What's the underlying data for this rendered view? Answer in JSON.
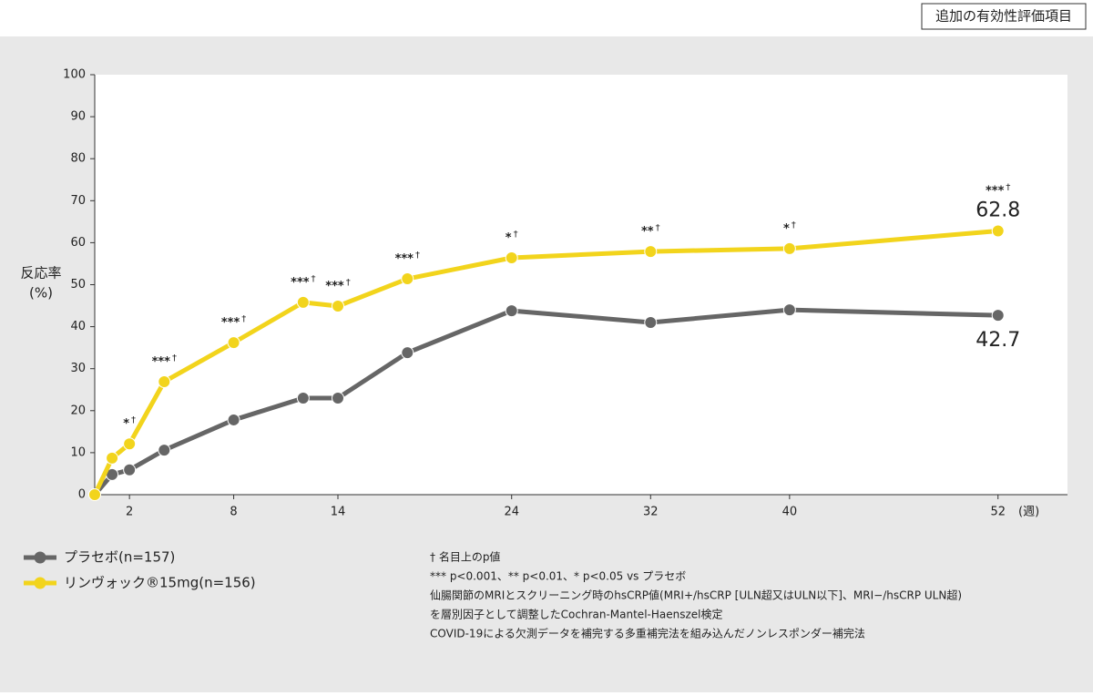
{
  "header": {
    "badge": "追加の有効性評価項目"
  },
  "chart_data": {
    "type": "line",
    "x": [
      0,
      1,
      2,
      4,
      8,
      12,
      14,
      18,
      24,
      32,
      40,
      52
    ],
    "series": [
      {
        "name": "プラセボ(n=157)",
        "color": "#666666",
        "values": [
          0,
          4.8,
          5.9,
          10.6,
          17.8,
          23,
          23,
          33.8,
          43.8,
          41,
          44,
          42.7
        ]
      },
      {
        "name": "リンヴォック®15mg(n=156)",
        "color": "#f2d41c",
        "values": [
          0,
          8.7,
          12.1,
          26.9,
          36.2,
          45.8,
          44.9,
          51.4,
          56.4,
          57.9,
          58.6,
          62.8
        ]
      }
    ],
    "significance": [
      null,
      null,
      "*",
      "***",
      "***",
      "***",
      "***",
      "***",
      "*",
      "**",
      "*",
      "***"
    ],
    "significance_mark": "†",
    "xlim": [
      0,
      56
    ],
    "xticks": [
      2,
      8,
      14,
      24,
      32,
      40,
      52
    ],
    "x_label": "(週)",
    "ylim": [
      0,
      100
    ],
    "yticks": [
      0,
      10,
      20,
      30,
      40,
      50,
      60,
      70,
      80,
      90,
      100
    ],
    "y_label": [
      "反応率",
      "(%)"
    ],
    "footnotes": [
      "† 名目上のp値",
      "*** p<0.001、** p<0.01、* p<0.05 vs プラセボ",
      "仙腸関節のMRIとスクリーニング時のhsCRP値(MRI+/hsCRP [ULN超又はULN以下]、MRI−/hsCRP ULN超)",
      "を層別因子として調整したCochran-Mantel-Haenszel検定",
      "COVID-19による欠測データを補完する多重補完法を組み込んだノンレスポンダー補完法"
    ]
  }
}
